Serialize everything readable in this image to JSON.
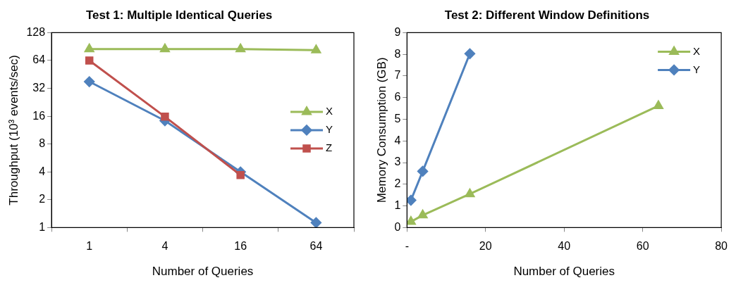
{
  "chart_data": [
    {
      "type": "line",
      "title": "Test 1: Multiple Identical Queries",
      "xlabel": "Number of Queries",
      "ylabel": "Throughput (10³ events/sec)",
      "categories": [
        "1",
        "4",
        "16",
        "64"
      ],
      "log": "y",
      "ylim": [
        1,
        128
      ],
      "yticks": [
        1,
        2,
        4,
        8,
        16,
        32,
        64,
        128
      ],
      "grid": false,
      "legend": "right",
      "series": [
        {
          "name": "X",
          "color": "#9bbb59",
          "marker": "triangle",
          "values": [
            85,
            85,
            85,
            83
          ]
        },
        {
          "name": "Y",
          "color": "#4f81bd",
          "marker": "diamond",
          "values": [
            37.8,
            14.3,
            4,
            1.13
          ]
        },
        {
          "name": "Z",
          "color": "#c0504d",
          "marker": "square",
          "values": [
            64,
            15.8,
            3.7,
            null
          ]
        }
      ]
    },
    {
      "type": "line",
      "title": "Test 2: Different Window Definitions",
      "xlabel": "Number of Queries",
      "ylabel": "Memory Consumption (GB)",
      "xlim": [
        0,
        80
      ],
      "xticks": [
        {
          "value": 0,
          "label": "-"
        },
        20,
        40,
        60,
        80
      ],
      "ylim": [
        0,
        9
      ],
      "yticks": [
        0,
        1,
        2,
        3,
        4,
        5,
        6,
        7,
        8,
        9
      ],
      "grid": false,
      "legend": "top right",
      "series": [
        {
          "name": "X",
          "color": "#9bbb59",
          "marker": "triangle",
          "x": [
            1,
            4,
            16,
            64
          ],
          "values": [
            0.27,
            0.57,
            1.55,
            5.62
          ]
        },
        {
          "name": "Y",
          "color": "#4f81bd",
          "marker": "diamond",
          "x": [
            1,
            4,
            16
          ],
          "values": [
            1.26,
            2.6,
            8.03
          ]
        }
      ]
    }
  ]
}
